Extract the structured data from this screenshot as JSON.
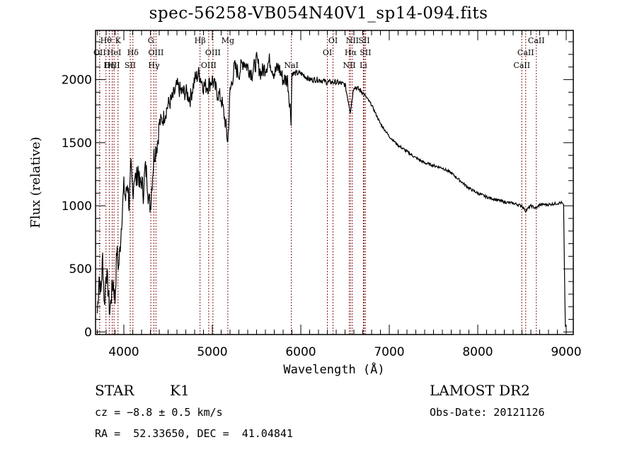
{
  "chart_data": {
    "type": "line",
    "title": "spec-56258-VB054N40V1_sp14-094.fits",
    "xlabel": "Wavelength (Å)",
    "ylabel": "Flux (relative)",
    "xlim": [
      3680,
      9080
    ],
    "ylim": [
      -20,
      2390
    ],
    "grid": false,
    "xticks": [
      4000,
      5000,
      6000,
      7000,
      8000,
      9000
    ],
    "xtick_labels": [
      "4000",
      "5000",
      "6000",
      "7000",
      "8000",
      "9000"
    ],
    "yticks": [
      0,
      500,
      1000,
      1500,
      2000
    ],
    "ytick_labels": [
      "0",
      "500",
      "1000",
      "1500",
      "2000"
    ],
    "series": [
      {
        "name": "spectrum",
        "x": [
          3700,
          3720,
          3740,
          3760,
          3780,
          3800,
          3820,
          3840,
          3860,
          3880,
          3900,
          3920,
          3940,
          3960,
          3980,
          4000,
          4020,
          4040,
          4060,
          4080,
          4100,
          4120,
          4140,
          4160,
          4180,
          4200,
          4220,
          4240,
          4260,
          4280,
          4300,
          4320,
          4340,
          4360,
          4380,
          4400,
          4450,
          4500,
          4550,
          4600,
          4650,
          4700,
          4750,
          4800,
          4850,
          4900,
          4950,
          5000,
          5050,
          5100,
          5150,
          5175,
          5200,
          5250,
          5300,
          5350,
          5400,
          5450,
          5500,
          5550,
          5600,
          5650,
          5700,
          5750,
          5800,
          5850,
          5890,
          5900,
          5950,
          6000,
          6100,
          6200,
          6300,
          6400,
          6500,
          6560,
          6600,
          6700,
          6800,
          6900,
          7000,
          7100,
          7200,
          7300,
          7400,
          7500,
          7600,
          7700,
          7800,
          7900,
          8000,
          8100,
          8200,
          8300,
          8400,
          8500,
          8540,
          8600,
          8660,
          8700,
          8800,
          8900,
          8950,
          8970,
          8980,
          8990
        ],
        "y": [
          150,
          450,
          300,
          600,
          200,
          500,
          350,
          150,
          300,
          400,
          250,
          650,
          500,
          700,
          950,
          1150,
          1050,
          1200,
          1000,
          1300,
          1100,
          1250,
          1200,
          1300,
          1150,
          1200,
          1100,
          1300,
          1250,
          1050,
          1000,
          1200,
          1400,
          1450,
          1500,
          1650,
          1700,
          1800,
          1850,
          1950,
          1900,
          1900,
          1850,
          2000,
          2050,
          1950,
          1950,
          2000,
          1900,
          1850,
          1650,
          1500,
          1900,
          2100,
          2050,
          2150,
          2100,
          2050,
          2150,
          2050,
          2100,
          2150,
          2050,
          2100,
          2000,
          2000,
          1700,
          2050,
          2050,
          2050,
          2000,
          2000,
          1980,
          1980,
          1960,
          1750,
          1950,
          1900,
          1800,
          1650,
          1550,
          1480,
          1430,
          1380,
          1340,
          1320,
          1300,
          1260,
          1200,
          1140,
          1100,
          1070,
          1050,
          1030,
          1020,
          1000,
          960,
          1000,
          980,
          1010,
          1010,
          1020,
          1025,
          1000,
          500,
          40
        ]
      }
    ],
    "line_markers": [
      {
        "label": "Hθ",
        "x": 3798,
        "row": 1
      },
      {
        "label": "K",
        "x": 3934,
        "row": 1
      },
      {
        "label": "G",
        "x": 4305,
        "row": 1
      },
      {
        "label": "Hβ",
        "x": 4861,
        "row": 1
      },
      {
        "label": "Mg",
        "x": 5175,
        "row": 1
      },
      {
        "label": "OI",
        "x": 6364,
        "row": 1
      },
      {
        "label": "NII",
        "x": 6583,
        "row": 1
      },
      {
        "label": "SII",
        "x": 6716,
        "row": 1
      },
      {
        "label": "CaII",
        "x": 8662,
        "row": 1
      },
      {
        "label": "OII",
        "x": 3727,
        "row": 2
      },
      {
        "label": "HeI",
        "x": 3889,
        "row": 2
      },
      {
        "label": "Hδ",
        "x": 4102,
        "row": 2
      },
      {
        "label": "OIII",
        "x": 4363,
        "row": 2
      },
      {
        "label": "OIII",
        "x": 5007,
        "row": 2
      },
      {
        "label": "OI",
        "x": 6300,
        "row": 2
      },
      {
        "label": "Hα",
        "x": 6563,
        "row": 2
      },
      {
        "label": "SII",
        "x": 6731,
        "row": 2
      },
      {
        "label": "CaII",
        "x": 8542,
        "row": 2
      },
      {
        "label": "OIII",
        "x": 3869,
        "row": 3
      },
      {
        "label": "Hη",
        "x": 3835,
        "row": 3
      },
      {
        "label": "SII",
        "x": 4072,
        "row": 3
      },
      {
        "label": "Hγ",
        "x": 4340,
        "row": 3
      },
      {
        "label": "OIII",
        "x": 4959,
        "row": 3
      },
      {
        "label": "NaI",
        "x": 5893,
        "row": 3
      },
      {
        "label": "NII",
        "x": 6548,
        "row": 3
      },
      {
        "label": "Li",
        "x": 6707,
        "row": 3
      },
      {
        "label": "CaII",
        "x": 8498,
        "row": 3
      }
    ],
    "marker_color": "#8b1a1a",
    "line_color": "#000000"
  },
  "info": {
    "object_class": "STAR",
    "subclass": "K1",
    "redshift": "cz = −8.8 ± 0.5 km/s",
    "coords": "RA =  52.33650, DEC =  41.04841",
    "survey": "LAMOST DR2",
    "obs_date": "Obs-Date: 20121126"
  }
}
